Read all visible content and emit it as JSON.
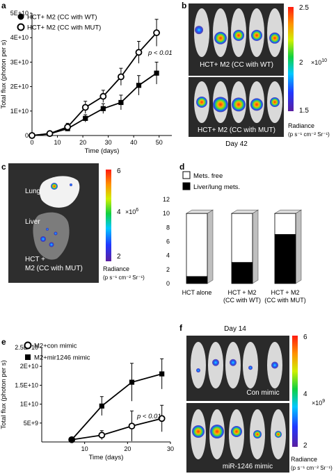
{
  "panels": {
    "a": "a",
    "b": "b",
    "c": "c",
    "d": "d",
    "e": "e",
    "f": "f"
  },
  "chart_data": [
    {
      "panel": "a",
      "type": "line",
      "xlabel": "Time (days)",
      "ylabel": "Total flux (photon per s)",
      "xlim": [
        0,
        55
      ],
      "ylim": [
        0,
        50000000000
      ],
      "xticks": [
        0,
        10,
        20,
        30,
        40,
        50
      ],
      "xtick_labels": [
        "0",
        "10",
        "20",
        "30",
        "40",
        "50"
      ],
      "yticks": [
        0,
        10000000000,
        20000000000,
        30000000000,
        40000000000,
        50000000000
      ],
      "ytick_labels": [
        "0",
        "1E+10",
        "2E+10",
        "3E+10",
        "4E+10",
        "5E+10"
      ],
      "annotation": "p < 0.01",
      "series": [
        {
          "name": "HCT+ M2 (CC with WT)",
          "marker": "filled-square",
          "x": [
            0,
            7,
            14,
            21,
            28,
            35,
            42,
            49
          ],
          "y": [
            0,
            700000000,
            2800000000,
            7000000000,
            11000000000,
            13500000000,
            20500000000,
            25500000000
          ],
          "err": [
            0,
            300000000,
            1000000000,
            1500000000,
            2000000000,
            3000000000,
            4000000000,
            4500000000
          ]
        },
        {
          "name": "HCT+ M2 (CC with MUT)",
          "marker": "open-circle",
          "x": [
            0,
            7,
            14,
            21,
            28,
            35,
            42,
            49
          ],
          "y": [
            0,
            800000000,
            3500000000,
            11500000000,
            16000000000,
            24000000000,
            34000000000,
            42000000000
          ],
          "err": [
            0,
            400000000,
            1500000000,
            2500000000,
            2500000000,
            3500000000,
            4500000000,
            5500000000
          ]
        }
      ]
    },
    {
      "panel": "d",
      "type": "bar",
      "categories": [
        [
          "HCT alone"
        ],
        [
          "HCT + M2",
          "(CC with WT)"
        ],
        [
          "HCT + M2",
          "(CC with MUT)"
        ]
      ],
      "ylim": [
        0,
        12
      ],
      "yticks": [
        0,
        2,
        4,
        6,
        8,
        10,
        12
      ],
      "ytick_labels": [
        "0",
        "2",
        "4",
        "6",
        "8",
        "10",
        "12"
      ],
      "series": [
        {
          "name": "Liver/lung mets.",
          "color": "#000000",
          "values": [
            1,
            3,
            7
          ]
        },
        {
          "name": "Mets. free",
          "color": "#ffffff",
          "values": [
            9,
            7,
            3
          ]
        }
      ]
    },
    {
      "panel": "e",
      "type": "line",
      "xlabel": "Time (days)",
      "ylabel": "Total flux (photon per s)",
      "xlim": [
        0,
        30
      ],
      "ylim": [
        0,
        25000000000
      ],
      "xticks": [
        10,
        20,
        30
      ],
      "xtick_labels": [
        "10",
        "20",
        "30"
      ],
      "yticks": [
        5000000000,
        10000000000,
        15000000000,
        20000000000,
        25000000000
      ],
      "ytick_labels": [
        "5E+9",
        "1E+10",
        "1.5E+10",
        "2E+10",
        "2.5E+10"
      ],
      "annotation": "p < 0.01",
      "series": [
        {
          "name": "M2+con mimic",
          "marker": "open-circle",
          "x": [
            7,
            14,
            21,
            28
          ],
          "y": [
            600000000,
            1800000000,
            4200000000,
            6200000000
          ],
          "err": [
            200000000,
            1200000000,
            4000000000,
            3500000000
          ]
        },
        {
          "name": "M2+mir1246 mimic",
          "marker": "filled-square",
          "x": [
            7,
            14,
            21,
            28
          ],
          "y": [
            600000000,
            9500000000,
            15800000000,
            18000000000
          ],
          "err": [
            200000000,
            2500000000,
            5000000000,
            4000000000
          ]
        }
      ]
    }
  ],
  "imaging": {
    "b": {
      "top_label": "HCT+ M2 (CC with WT)",
      "bottom_label": "HCT+ M2 (CC with MUT)",
      "day": "Day 42",
      "scale_max": "2.5",
      "scale_mid": "2",
      "scale_min": "1.5",
      "scale_unit": "×10",
      "scale_exp": "10",
      "radiance_title": "Radiance",
      "radiance_units": "(p s⁻¹ cm⁻² Sr⁻¹)"
    },
    "c": {
      "lung": "Lung",
      "liver": "Liver",
      "caption_1": "HCT +",
      "caption_2": "M2 (CC with MUT)",
      "scale_max": "6",
      "scale_mid": "4",
      "scale_min": "2",
      "scale_unit": "×10",
      "scale_exp": "6",
      "radiance_title": "Radiance",
      "radiance_units": "(p s⁻¹ cm⁻² Sr⁻¹)"
    },
    "f": {
      "day": "Day 14",
      "top_label": "Con mimic",
      "bottom_label": "miR-1246 mimic",
      "scale_max": "6",
      "scale_mid": "4",
      "scale_min": "2",
      "scale_unit": "×10",
      "scale_exp": "9",
      "radiance_title": "Radiance",
      "radiance_units": "(p s⁻¹ cm⁻² Sr⁻¹)"
    }
  },
  "colors": {
    "photo_bg": "#2a2a2a",
    "mouse": "#d9d9d9",
    "bar_side": "#bfbfbf"
  }
}
